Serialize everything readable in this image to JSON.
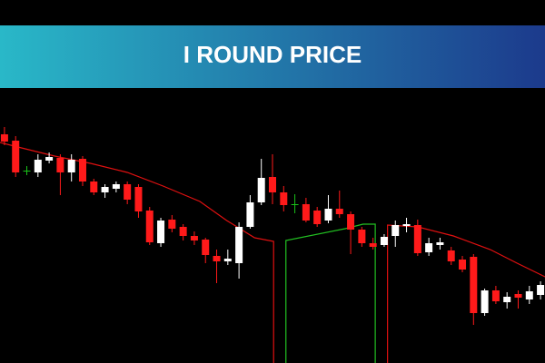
{
  "chart_data": {
    "type": "candlestick",
    "title": "I ROUND PRICE",
    "xlim": [
      -0.4,
      48.4
    ],
    "ylim": [
      0,
      303
    ],
    "up_color": "#ffffff",
    "down_color": "#ff1a1a",
    "doji_color": "#19c219",
    "open": [
      252,
      245,
      212,
      210,
      223,
      226,
      210,
      225,
      200,
      188,
      192,
      197,
      194,
      168,
      132,
      158,
      150,
      140,
      136,
      118,
      112,
      110,
      150,
      177,
      205,
      188,
      175,
      175,
      168,
      157,
      170,
      164,
      147,
      132,
      130,
      140,
      151,
      152,
      122,
      130,
      124,
      114,
      117,
      55,
      80,
      67,
      76,
      70,
      75
    ],
    "high": [
      260,
      250,
      217,
      230,
      232,
      230,
      230,
      228,
      203,
      197,
      200,
      200,
      197,
      172,
      160,
      163,
      153,
      145,
      138,
      125,
      125,
      155,
      185,
      225,
      230,
      195,
      186,
      182,
      172,
      185,
      190,
      167,
      150,
      138,
      142,
      157,
      160,
      158,
      138,
      138,
      128,
      118,
      120,
      82,
      85,
      78,
      80,
      85,
      90
    ],
    "low": [
      240,
      205,
      207,
      205,
      220,
      185,
      200,
      195,
      185,
      182,
      188,
      175,
      160,
      130,
      128,
      144,
      135,
      130,
      110,
      88,
      108,
      93,
      148,
      174,
      175,
      167,
      165,
      155,
      150,
      154,
      160,
      120,
      128,
      125,
      128,
      128,
      144,
      118,
      118,
      125,
      108,
      100,
      42,
      52,
      65,
      60,
      60,
      65,
      70
    ],
    "close": [
      244,
      210,
      212,
      224,
      227,
      210,
      224,
      200,
      188,
      194,
      197,
      180,
      167,
      133,
      157,
      148,
      140,
      135,
      119,
      112,
      115,
      150,
      177,
      204,
      188,
      174,
      175,
      157,
      153,
      170,
      164,
      147,
      132,
      128,
      139,
      152,
      153,
      121,
      132,
      133,
      112,
      103,
      55,
      80,
      68,
      73,
      72,
      79,
      86
    ],
    "lines": [
      {
        "color": "#e01010",
        "x": [
          -0.4,
          1.2,
          4.5,
          7.7,
          11,
          14.2,
          17.5,
          19.9,
          22.4,
          24.1,
          24.1
        ],
        "values": [
          243,
          238,
          228,
          220,
          210,
          195,
          178,
          157,
          138,
          134,
          0
        ]
      },
      {
        "color": "#22c022",
        "x": [
          25.2,
          25.2,
          30.5,
          32.1,
          33.2,
          33.2
        ],
        "values": [
          0,
          135,
          148,
          153,
          153,
          0
        ]
      },
      {
        "color": "#e01010",
        "x": [
          34.3,
          34.3,
          37,
          40.2,
          43.5,
          45.9,
          48.4
        ],
        "values": [
          0,
          152,
          150,
          140,
          125,
          110,
          95
        ]
      }
    ]
  }
}
